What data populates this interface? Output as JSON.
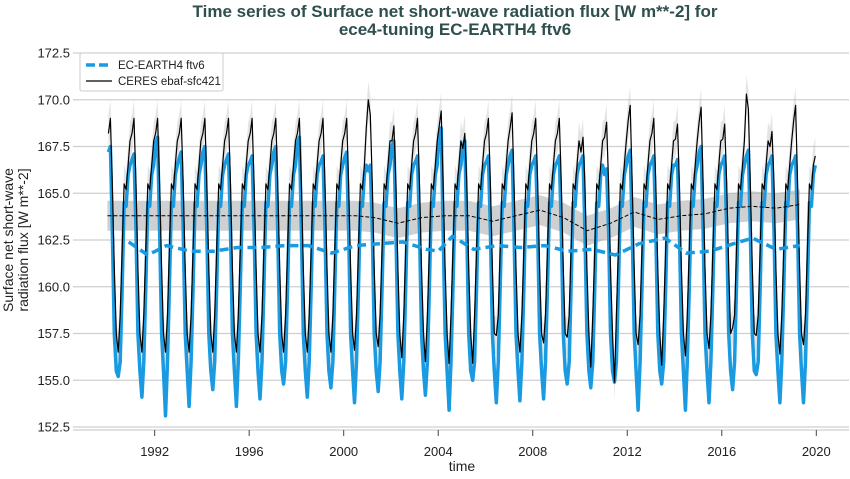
{
  "chart_data": {
    "type": "line",
    "title": [
      "Time series of Surface net short-wave radiation flux [W m**-2] for",
      "ece4-tuning EC-EARTH4 ftv6"
    ],
    "xlabel": "time",
    "ylabel": [
      "Surface net short-wave",
      "radiation flux [W m**-2]"
    ],
    "xlim": [
      1988.5,
      2021.3
    ],
    "ylim": [
      152.34,
      173.0
    ],
    "xticks": [
      1992,
      1996,
      2000,
      2004,
      2008,
      2012,
      2016,
      2020
    ],
    "yticks": [
      "152.5",
      "155.0",
      "157.5",
      "160.0",
      "162.5",
      "165.0",
      "167.5",
      "170.0",
      "172.5"
    ],
    "grid": "horizontal",
    "legend_placement": "top-left",
    "first_year": 1990,
    "series": [
      {
        "name": "EC-EARTH4 ftv6",
        "color": "#1a9ae0",
        "style": "thick",
        "monthly_by_year": [
          [
            167.2,
            167.5,
            163.0,
            157.5,
            155.5,
            155.2,
            156.0,
            160.0,
            164.5,
            164.3,
            166.0,
            166.5
          ],
          [
            166.8,
            167.1,
            163.0,
            157.5,
            155.5,
            154.1,
            156.0,
            160.0,
            164.5,
            164.3,
            166.0,
            166.5
          ],
          [
            167.7,
            168.0,
            163.0,
            157.5,
            155.5,
            153.1,
            156.0,
            160.0,
            164.5,
            164.3,
            166.0,
            166.5
          ],
          [
            166.9,
            167.2,
            163.0,
            157.5,
            155.5,
            153.6,
            156.0,
            160.0,
            164.5,
            164.3,
            166.0,
            166.5
          ],
          [
            167.2,
            167.5,
            163.0,
            157.5,
            155.5,
            154.5,
            156.0,
            160.0,
            164.5,
            164.3,
            166.0,
            166.5
          ],
          [
            166.8,
            167.1,
            163.0,
            157.5,
            155.5,
            153.6,
            156.0,
            160.0,
            164.5,
            164.3,
            166.0,
            166.5
          ],
          [
            166.7,
            167.0,
            163.0,
            157.5,
            155.5,
            154.0,
            156.0,
            160.0,
            164.5,
            164.3,
            166.0,
            166.5
          ],
          [
            167.2,
            167.5,
            163.0,
            157.5,
            155.5,
            154.8,
            156.0,
            160.0,
            164.5,
            164.3,
            166.0,
            166.5
          ],
          [
            167.7,
            168.0,
            163.0,
            157.5,
            155.5,
            154.1,
            156.0,
            160.0,
            164.5,
            164.3,
            166.0,
            166.5
          ],
          [
            166.7,
            167.0,
            163.0,
            157.5,
            155.5,
            154.6,
            156.0,
            160.0,
            164.5,
            164.3,
            166.0,
            166.5
          ],
          [
            166.9,
            167.2,
            163.0,
            157.5,
            155.5,
            153.8,
            156.0,
            160.0,
            164.5,
            164.3,
            166.0,
            166.5
          ],
          [
            166.2,
            166.5,
            163.0,
            157.5,
            155.5,
            154.4,
            156.0,
            160.0,
            164.5,
            164.3,
            166.0,
            166.5
          ],
          [
            167.5,
            167.8,
            163.0,
            157.5,
            155.5,
            154.0,
            156.0,
            160.0,
            164.5,
            164.3,
            166.0,
            166.5
          ],
          [
            166.7,
            167.0,
            163.0,
            157.5,
            155.5,
            154.2,
            156.0,
            160.0,
            164.5,
            164.3,
            166.0,
            166.5
          ],
          [
            168.2,
            168.5,
            163.0,
            157.5,
            155.5,
            153.4,
            156.0,
            160.0,
            164.5,
            164.3,
            166.0,
            166.5
          ],
          [
            167.5,
            167.8,
            163.0,
            157.5,
            155.5,
            155.0,
            156.0,
            160.0,
            164.5,
            164.3,
            166.0,
            166.5
          ],
          [
            166.7,
            167.0,
            163.0,
            157.5,
            155.5,
            153.8,
            156.0,
            160.0,
            164.5,
            164.3,
            166.0,
            166.5
          ],
          [
            167.0,
            167.3,
            163.0,
            157.5,
            155.5,
            153.9,
            156.0,
            160.0,
            164.5,
            164.3,
            166.0,
            166.5
          ],
          [
            166.7,
            167.0,
            163.0,
            157.5,
            155.5,
            154.0,
            156.0,
            160.0,
            164.5,
            164.3,
            166.0,
            166.5
          ],
          [
            166.7,
            167.0,
            163.0,
            157.5,
            155.5,
            154.8,
            156.0,
            160.0,
            164.5,
            164.3,
            166.0,
            166.5
          ],
          [
            166.7,
            167.0,
            163.0,
            157.5,
            155.5,
            154.6,
            156.0,
            160.0,
            164.5,
            164.3,
            166.0,
            166.5
          ],
          [
            166.0,
            166.3,
            163.0,
            157.5,
            155.5,
            154.9,
            156.0,
            160.0,
            164.5,
            164.3,
            166.0,
            166.5
          ],
          [
            167.0,
            167.3,
            163.0,
            157.5,
            155.5,
            153.4,
            156.0,
            160.0,
            164.5,
            164.3,
            166.0,
            166.5
          ],
          [
            166.7,
            167.0,
            163.0,
            157.5,
            155.5,
            154.8,
            156.0,
            160.0,
            164.5,
            164.3,
            166.0,
            166.5
          ],
          [
            166.5,
            166.8,
            163.0,
            157.5,
            155.5,
            153.4,
            156.0,
            160.0,
            164.5,
            164.3,
            166.0,
            166.5
          ],
          [
            167.2,
            167.5,
            163.0,
            157.5,
            155.5,
            153.8,
            156.0,
            160.0,
            164.5,
            164.3,
            166.0,
            166.5
          ],
          [
            166.7,
            167.0,
            163.0,
            157.5,
            155.5,
            154.5,
            156.0,
            160.0,
            164.5,
            164.3,
            166.0,
            166.5
          ],
          [
            167.0,
            167.3,
            163.0,
            157.5,
            155.5,
            155.3,
            156.0,
            160.0,
            164.5,
            164.3,
            166.0,
            166.5
          ],
          [
            166.7,
            167.0,
            163.0,
            157.5,
            155.5,
            153.8,
            156.0,
            160.0,
            164.5,
            164.3,
            166.0,
            166.5
          ],
          [
            166.7,
            167.0,
            163.0,
            157.5,
            155.5,
            153.8,
            156.0,
            160.0,
            164.5,
            164.3,
            166.0,
            166.5
          ]
        ],
        "running_mean": {
          "x": [
            1990.9,
            1991.7,
            1992.5,
            1993.5,
            1994.5,
            1995.5,
            1996.5,
            1997.5,
            1998.5,
            1999.5,
            2000.5,
            2001.5,
            2002.5,
            2003.5,
            2004.0,
            2004.6,
            2005.5,
            2006.5,
            2007.5,
            2008.5,
            2009.5,
            2010.5,
            2011.5,
            2012.5,
            2013.6,
            2014.5,
            2015.5,
            2016.5,
            2017.3,
            2018.3,
            2019.3
          ],
          "y": [
            162.4,
            161.7,
            162.2,
            161.9,
            161.9,
            162.1,
            162.1,
            162.2,
            162.2,
            161.8,
            162.2,
            162.3,
            162.4,
            162.0,
            161.9,
            162.7,
            162.0,
            162.2,
            162.1,
            162.2,
            161.9,
            162.0,
            161.7,
            162.3,
            162.6,
            161.8,
            161.9,
            162.3,
            162.6,
            162.0,
            162.2
          ]
        }
      },
      {
        "name": "CERES ebaf-sfc421",
        "color": "#000000",
        "style": "thin",
        "uncertainty": 1.0,
        "monthly_by_year": [
          [
            168.2,
            169.0,
            165.5,
            161.0,
            157.5,
            156.5,
            158.5,
            162.0,
            165.5,
            165.2,
            166.5,
            167.8
          ],
          [
            168.2,
            169.0,
            165.5,
            161.0,
            157.5,
            156.5,
            158.5,
            162.0,
            165.5,
            165.2,
            166.5,
            167.8
          ],
          [
            168.2,
            169.0,
            165.5,
            161.0,
            157.5,
            156.5,
            158.5,
            162.0,
            165.5,
            165.2,
            166.5,
            167.8
          ],
          [
            168.2,
            169.0,
            165.5,
            161.0,
            157.5,
            156.5,
            158.5,
            162.0,
            165.5,
            165.2,
            166.5,
            167.8
          ],
          [
            168.2,
            169.0,
            165.5,
            161.0,
            157.5,
            156.5,
            158.5,
            162.0,
            165.5,
            165.2,
            166.5,
            167.8
          ],
          [
            168.2,
            169.0,
            165.5,
            161.0,
            157.5,
            156.5,
            158.5,
            162.0,
            165.5,
            165.2,
            166.5,
            167.8
          ],
          [
            168.2,
            169.0,
            165.5,
            161.0,
            157.5,
            156.5,
            158.5,
            162.0,
            165.5,
            165.2,
            166.5,
            167.8
          ],
          [
            168.2,
            169.0,
            165.5,
            161.0,
            157.5,
            156.5,
            158.5,
            162.0,
            165.5,
            165.2,
            166.5,
            167.8
          ],
          [
            168.2,
            169.0,
            165.5,
            161.0,
            157.5,
            156.5,
            158.5,
            162.0,
            165.5,
            165.2,
            166.5,
            167.8
          ],
          [
            168.2,
            169.0,
            165.5,
            161.0,
            157.5,
            156.5,
            158.5,
            162.0,
            165.5,
            165.2,
            166.5,
            167.8
          ],
          [
            168.2,
            169.0,
            165.5,
            161.0,
            157.5,
            156.6,
            158.5,
            162.0,
            165.5,
            165.2,
            166.5,
            168.5
          ],
          [
            170.0,
            169.2,
            165.5,
            161.0,
            157.5,
            156.8,
            158.5,
            162.0,
            165.5,
            165.2,
            166.5,
            167.8
          ],
          [
            167.8,
            168.6,
            165.5,
            161.0,
            157.5,
            156.2,
            158.5,
            162.0,
            165.5,
            165.2,
            166.5,
            167.8
          ],
          [
            168.2,
            169.0,
            165.5,
            161.0,
            157.5,
            156.0,
            158.5,
            162.0,
            165.5,
            165.2,
            166.5,
            167.8
          ],
          [
            168.6,
            169.4,
            165.5,
            161.0,
            157.5,
            155.9,
            158.5,
            162.0,
            165.5,
            165.2,
            166.5,
            167.8
          ],
          [
            167.4,
            168.2,
            165.5,
            161.0,
            157.5,
            155.9,
            158.5,
            162.0,
            165.5,
            165.2,
            166.5,
            167.8
          ],
          [
            168.2,
            169.0,
            165.5,
            161.0,
            157.5,
            157.4,
            158.5,
            162.0,
            165.5,
            165.2,
            166.5,
            167.8
          ],
          [
            168.5,
            169.3,
            165.5,
            161.0,
            157.5,
            156.5,
            158.5,
            162.0,
            165.5,
            165.2,
            166.5,
            167.8
          ],
          [
            168.2,
            169.0,
            165.5,
            161.0,
            157.5,
            157.0,
            158.5,
            162.0,
            165.5,
            165.2,
            166.5,
            167.8
          ],
          [
            168.2,
            169.0,
            165.5,
            161.0,
            157.5,
            157.3,
            158.5,
            162.0,
            165.5,
            165.2,
            166.5,
            167.8
          ],
          [
            167.2,
            168.0,
            165.5,
            161.0,
            157.5,
            155.7,
            158.5,
            162.0,
            165.5,
            165.2,
            166.5,
            167.8
          ],
          [
            168.0,
            168.8,
            165.5,
            161.0,
            157.5,
            154.9,
            158.5,
            162.0,
            165.5,
            165.2,
            166.5,
            167.8
          ],
          [
            168.9,
            169.7,
            165.5,
            161.0,
            157.5,
            156.9,
            158.5,
            162.0,
            165.5,
            165.2,
            166.5,
            167.8
          ],
          [
            168.2,
            169.0,
            165.5,
            161.0,
            157.5,
            155.8,
            158.5,
            162.0,
            165.5,
            165.2,
            166.5,
            167.8
          ],
          [
            167.9,
            168.7,
            165.5,
            161.0,
            157.5,
            156.3,
            158.5,
            162.0,
            165.5,
            165.2,
            166.5,
            167.8
          ],
          [
            168.8,
            169.6,
            165.5,
            161.0,
            157.5,
            156.7,
            158.5,
            162.0,
            165.5,
            165.2,
            166.5,
            167.8
          ],
          [
            167.9,
            168.7,
            165.5,
            161.0,
            157.5,
            157.8,
            158.5,
            162.0,
            165.5,
            165.2,
            166.5,
            167.8
          ],
          [
            170.3,
            169.5,
            165.5,
            161.0,
            157.5,
            157.4,
            158.5,
            162.0,
            165.5,
            165.2,
            166.5,
            167.8
          ],
          [
            167.5,
            168.3,
            165.5,
            161.0,
            157.5,
            156.4,
            158.5,
            162.0,
            165.5,
            165.2,
            166.5,
            167.8
          ],
          [
            168.9,
            169.7,
            165.5,
            161.0,
            157.5,
            156.9,
            158.5,
            162.0,
            165.5,
            165.2,
            166.5,
            167.0
          ]
        ],
        "running_mean": {
          "x": [
            1990.0,
            1991.0,
            1992.0,
            1993.0,
            1994.0,
            1995.0,
            1996.0,
            1997.0,
            1998.0,
            1999.0,
            2000.5,
            2001.3,
            2002.3,
            2003.3,
            2004.3,
            2005.3,
            2006.3,
            2007.3,
            2008.3,
            2009.3,
            2010.3,
            2011.3,
            2012.3,
            2013.3,
            2014.3,
            2015.3,
            2016.3,
            2017.3,
            2018.3,
            2019.3
          ],
          "y": [
            163.8,
            163.8,
            163.8,
            163.8,
            163.8,
            163.8,
            163.8,
            163.8,
            163.8,
            163.8,
            163.8,
            163.7,
            163.4,
            163.7,
            163.8,
            163.8,
            163.5,
            163.8,
            164.1,
            163.7,
            163.0,
            163.4,
            164.0,
            163.6,
            163.8,
            163.9,
            164.2,
            164.3,
            164.2,
            164.4
          ]
        },
        "running_mean_uncertainty": 0.8
      }
    ]
  }
}
